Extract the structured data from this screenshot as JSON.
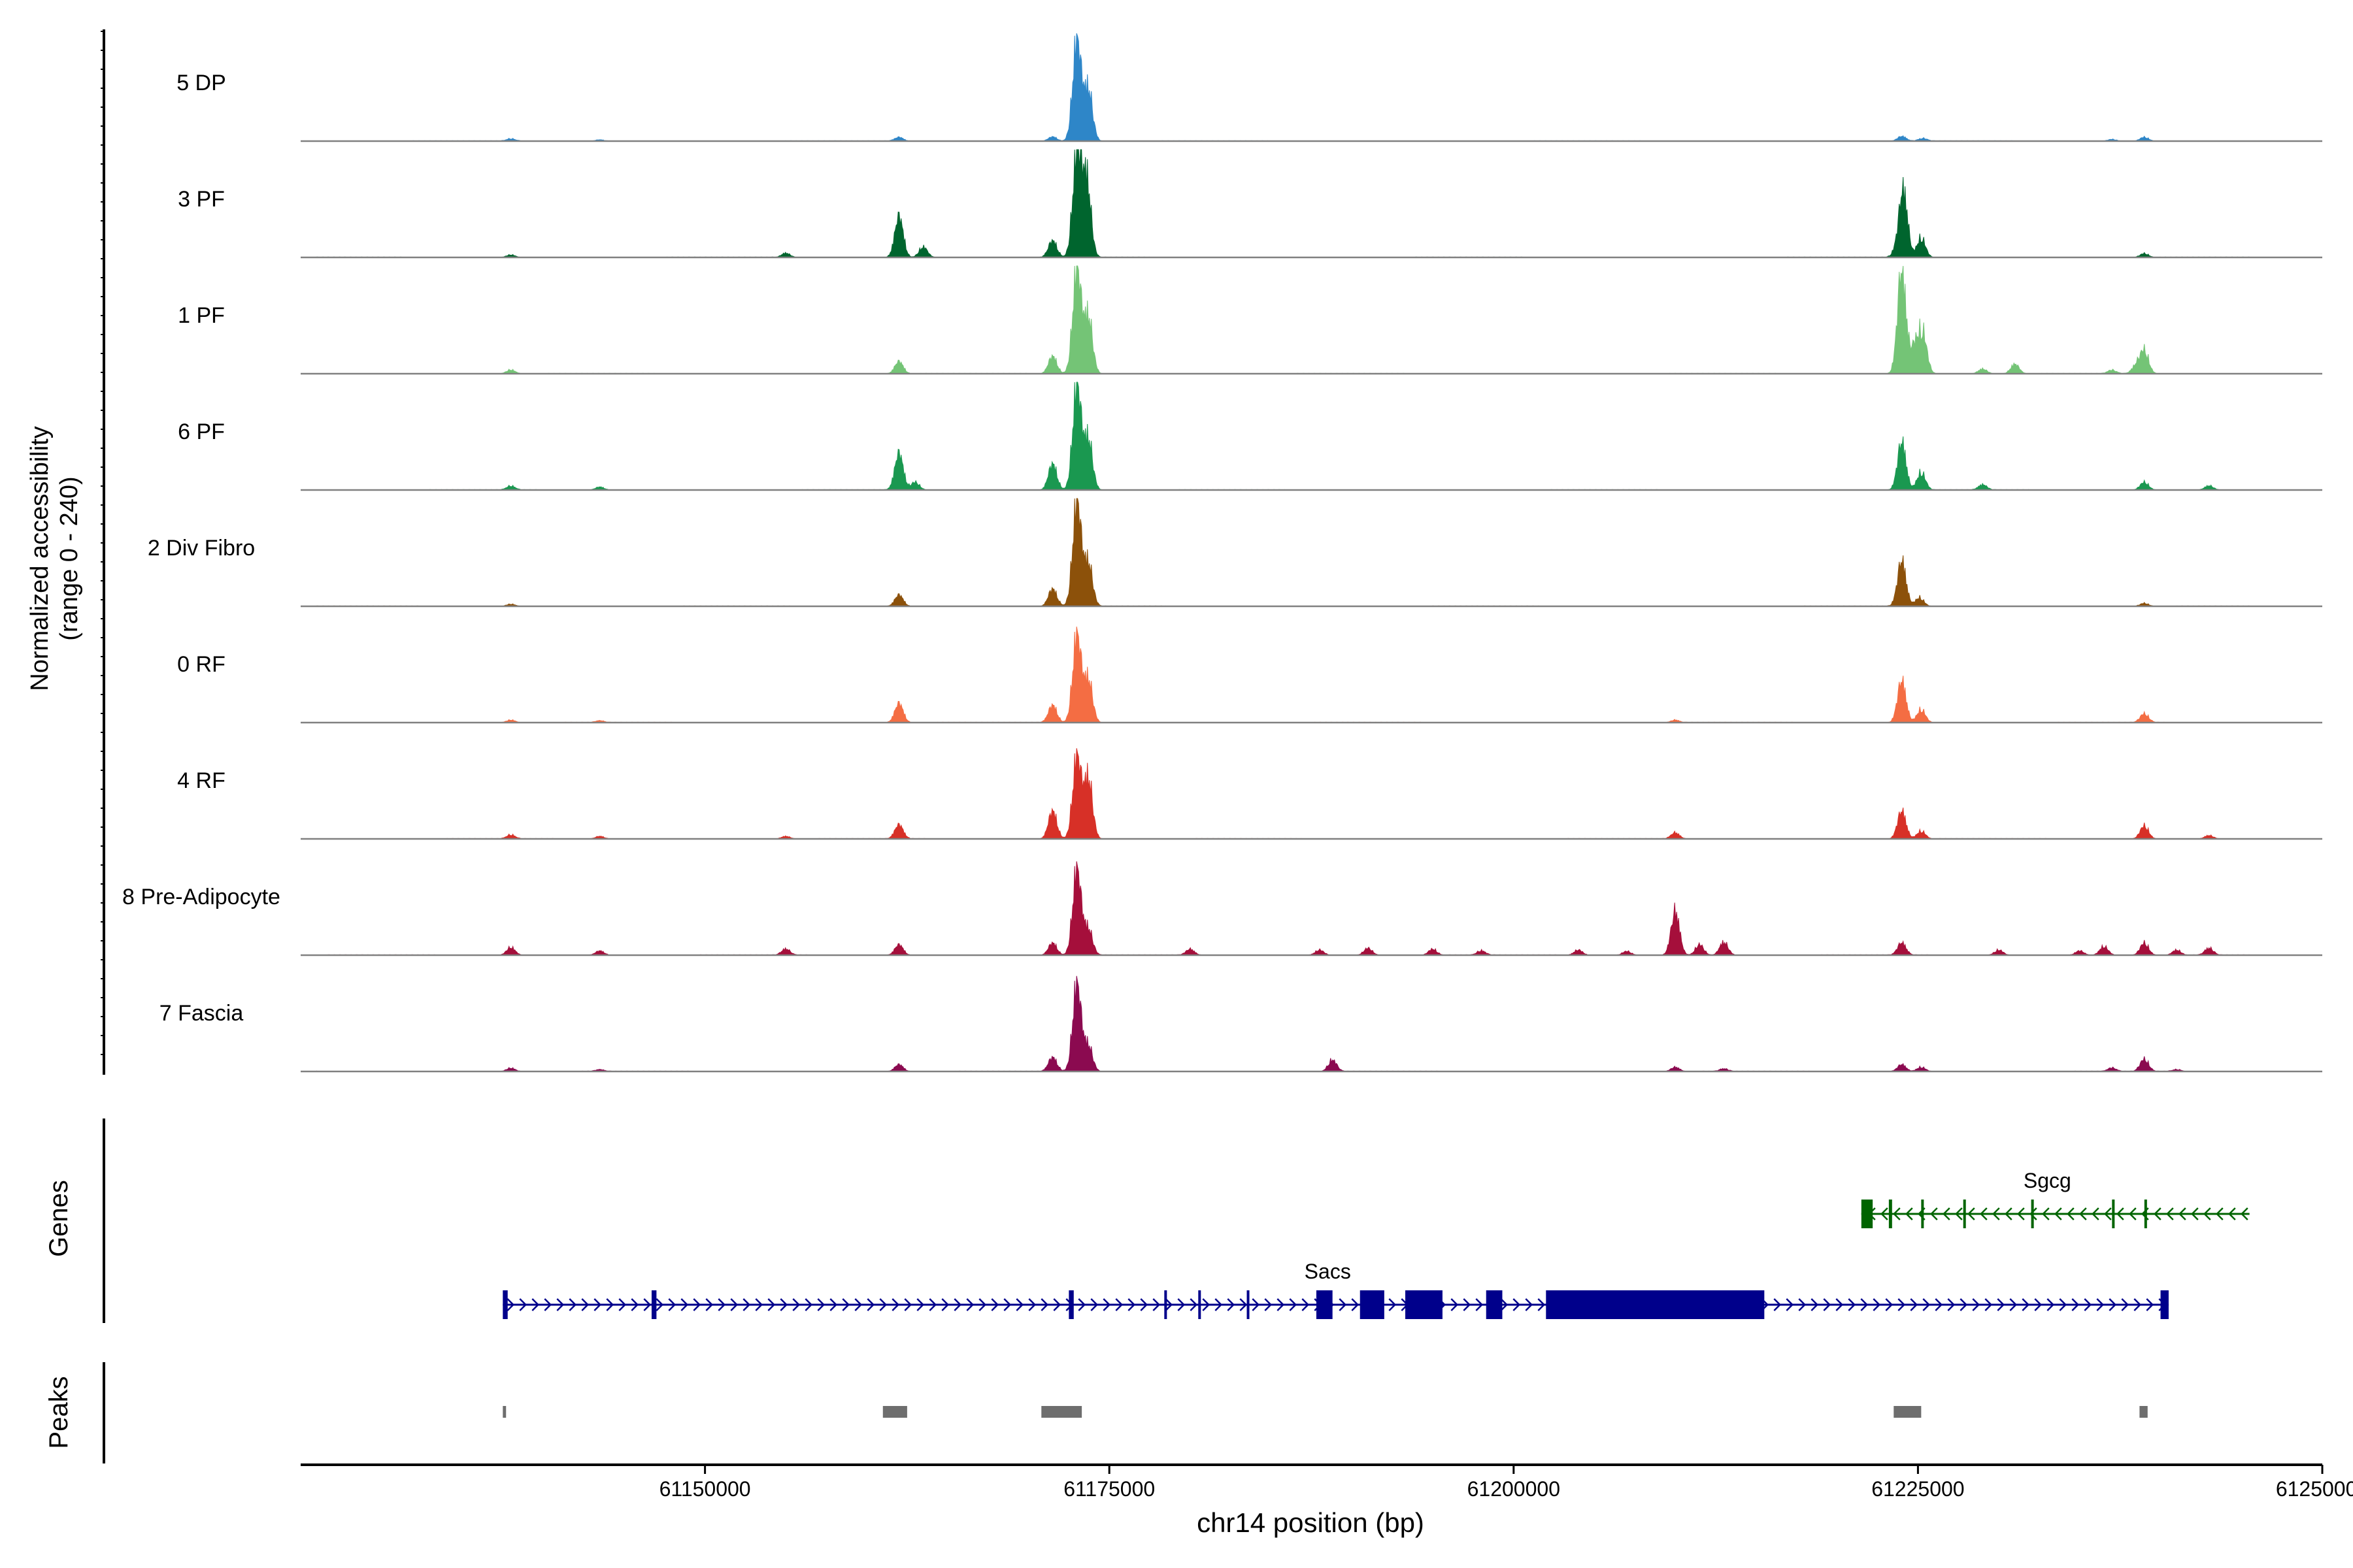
{
  "chart_data": {
    "type": "area",
    "title": "",
    "ylabel_line1": "Normalized accessibility",
    "ylabel_line2": "(range 0 - 240)",
    "ylim": [
      0,
      240
    ],
    "xlabel": "chr14 position (bp)",
    "xlim": [
      61125000,
      61250000
    ],
    "xticks": [
      61150000,
      61175000,
      61200000,
      61225000,
      61250000
    ],
    "xtick_labels": [
      "61150000",
      "61175000",
      "61200000",
      "61225000",
      "61250000"
    ],
    "tracks": [
      {
        "name": "5 DP",
        "color": "#2E86C8",
        "peaks": [
          [
            61138000,
            5
          ],
          [
            61143500,
            3
          ],
          [
            61162000,
            9
          ],
          [
            61171500,
            10
          ],
          [
            61173000,
            232
          ],
          [
            61173700,
            120
          ],
          [
            61224000,
            11
          ],
          [
            61225300,
            6
          ],
          [
            61237000,
            4
          ],
          [
            61239000,
            9
          ]
        ]
      },
      {
        "name": "3 PF",
        "color": "#00652E",
        "peaks": [
          [
            61138000,
            6
          ],
          [
            61155000,
            10
          ],
          [
            61162000,
            94
          ],
          [
            61163500,
            24
          ],
          [
            61171500,
            38
          ],
          [
            61173000,
            240
          ],
          [
            61173600,
            180
          ],
          [
            61223700,
            14
          ],
          [
            61224100,
            152
          ],
          [
            61225200,
            45
          ],
          [
            61239000,
            9
          ]
        ]
      },
      {
        "name": "1 PF",
        "color": "#74C476",
        "peaks": [
          [
            61138000,
            9
          ],
          [
            61162000,
            28
          ],
          [
            61171500,
            40
          ],
          [
            61173000,
            240
          ],
          [
            61173700,
            132
          ],
          [
            61224000,
            240
          ],
          [
            61224800,
            60
          ],
          [
            61225300,
            90
          ],
          [
            61229000,
            11
          ],
          [
            61231000,
            22
          ],
          [
            61237000,
            8
          ],
          [
            61239000,
            52
          ],
          [
            61238500,
            18
          ]
        ]
      },
      {
        "name": "6 PF",
        "color": "#1A9850",
        "peaks": [
          [
            61138000,
            9
          ],
          [
            61143500,
            7
          ],
          [
            61162000,
            84
          ],
          [
            61163000,
            18
          ],
          [
            61171500,
            60
          ],
          [
            61173000,
            240
          ],
          [
            61173700,
            118
          ],
          [
            61224000,
            110
          ],
          [
            61225200,
            40
          ],
          [
            61229000,
            12
          ],
          [
            61239000,
            18
          ],
          [
            61243000,
            10
          ]
        ]
      },
      {
        "name": "2 Div Fibro",
        "color": "#8C510A",
        "peaks": [
          [
            61138000,
            5
          ],
          [
            61162000,
            26
          ],
          [
            61171500,
            40
          ],
          [
            61173000,
            240
          ],
          [
            61173700,
            100
          ],
          [
            61224000,
            104
          ],
          [
            61225100,
            20
          ],
          [
            61239000,
            7
          ]
        ]
      },
      {
        "name": "0 RF",
        "color": "#F46D43",
        "peaks": [
          [
            61138000,
            6
          ],
          [
            61143500,
            4
          ],
          [
            61162000,
            44
          ],
          [
            61171500,
            40
          ],
          [
            61173000,
            200
          ],
          [
            61173700,
            100
          ],
          [
            61210000,
            6
          ],
          [
            61224000,
            96
          ],
          [
            61225200,
            30
          ],
          [
            61239000,
            20
          ]
        ]
      },
      {
        "name": "4 RF",
        "color": "#D73027",
        "peaks": [
          [
            61138000,
            9
          ],
          [
            61143500,
            6
          ],
          [
            61155000,
            6
          ],
          [
            61162000,
            32
          ],
          [
            61171500,
            64
          ],
          [
            61173000,
            188
          ],
          [
            61173700,
            140
          ],
          [
            61210000,
            14
          ],
          [
            61224000,
            64
          ],
          [
            61225200,
            18
          ],
          [
            61239000,
            30
          ],
          [
            61243000,
            8
          ]
        ]
      },
      {
        "name": "8 Pre-Adipocyte",
        "color": "#A50F3B",
        "peaks": [
          [
            61138000,
            18
          ],
          [
            61143500,
            10
          ],
          [
            61155000,
            14
          ],
          [
            61162000,
            24
          ],
          [
            61171500,
            28
          ],
          [
            61173000,
            196
          ],
          [
            61173700,
            60
          ],
          [
            61180000,
            14
          ],
          [
            61188000,
            12
          ],
          [
            61191000,
            16
          ],
          [
            61195000,
            14
          ],
          [
            61198000,
            10
          ],
          [
            61204000,
            12
          ],
          [
            61207000,
            9
          ],
          [
            61210000,
            100
          ],
          [
            61211500,
            24
          ],
          [
            61213000,
            30
          ],
          [
            61224000,
            28
          ],
          [
            61230000,
            12
          ],
          [
            61235000,
            10
          ],
          [
            61236500,
            20
          ],
          [
            61239000,
            28
          ],
          [
            61241000,
            12
          ],
          [
            61243000,
            16
          ]
        ]
      },
      {
        "name": "7 Fascia",
        "color": "#8B0A50",
        "peaks": [
          [
            61138000,
            8
          ],
          [
            61143500,
            4
          ],
          [
            61162000,
            16
          ],
          [
            61171500,
            32
          ],
          [
            61173000,
            200
          ],
          [
            61173700,
            60
          ],
          [
            61188800,
            26
          ],
          [
            61210000,
            10
          ],
          [
            61213000,
            6
          ],
          [
            61224000,
            16
          ],
          [
            61225200,
            10
          ],
          [
            61237000,
            8
          ],
          [
            61239000,
            28
          ],
          [
            61241000,
            4
          ]
        ]
      }
    ],
    "genes": [
      {
        "name": "Sgcg",
        "strand": "-",
        "start": 61221500,
        "end": 61245500,
        "color": "#006400",
        "exons": [
          [
            61221500,
            61222200
          ],
          [
            61223200,
            61223400
          ],
          [
            61225200,
            61225300
          ],
          [
            61227800,
            61227900
          ],
          [
            61232000,
            61232100
          ],
          [
            61237000,
            61237100
          ],
          [
            61239000,
            61239100
          ]
        ]
      },
      {
        "name": "Sacs",
        "strand": "+",
        "start": 61137500,
        "end": 61240500,
        "color": "#00008B",
        "exons": [
          [
            61137500,
            61137800
          ],
          [
            61146700,
            61147000
          ],
          [
            61172500,
            61172800
          ],
          [
            61178400,
            61178500
          ],
          [
            61180500,
            61180600
          ],
          [
            61183500,
            61183600
          ],
          [
            61187800,
            61188800
          ],
          [
            61190500,
            61192000
          ],
          [
            61193300,
            61195600
          ],
          [
            61198300,
            61199300
          ],
          [
            61202000,
            61215500
          ],
          [
            61240000,
            61240500
          ]
        ]
      }
    ],
    "peaks_track": [
      [
        61137500,
        61137700
      ],
      [
        61161000,
        61162500
      ],
      [
        61170800,
        61173300
      ],
      [
        61223500,
        61225200
      ],
      [
        61238700,
        61239200
      ]
    ],
    "track_labels": {
      "genes": "Genes",
      "peaks": "Peaks"
    }
  }
}
